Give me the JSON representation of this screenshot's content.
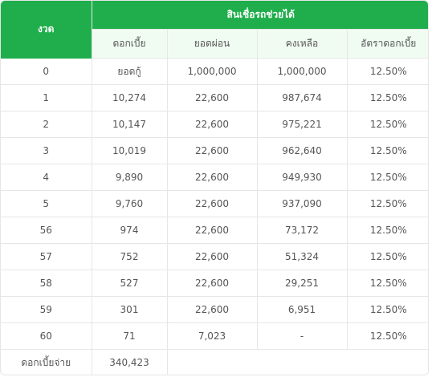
{
  "header": {
    "period_label": "งวด",
    "group_label": "สินเชื่อรถช่วยได้",
    "columns": [
      "ดอกเบี้ย",
      "ยอดผ่อน",
      "คงเหลือ",
      "อัตราดอกเบี้ย"
    ]
  },
  "rows": [
    {
      "period": "0",
      "interest": "ยอดกู้",
      "payment": "1,000,000",
      "balance": "1,000,000",
      "rate": "12.50%"
    },
    {
      "period": "1",
      "interest": "10,274",
      "payment": "22,600",
      "balance": "987,674",
      "rate": "12.50%"
    },
    {
      "period": "2",
      "interest": "10,147",
      "payment": "22,600",
      "balance": "975,221",
      "rate": "12.50%"
    },
    {
      "period": "3",
      "interest": "10,019",
      "payment": "22,600",
      "balance": "962,640",
      "rate": "12.50%"
    },
    {
      "period": "4",
      "interest": "9,890",
      "payment": "22,600",
      "balance": "949,930",
      "rate": "12.50%"
    },
    {
      "period": "5",
      "interest": "9,760",
      "payment": "22,600",
      "balance": "937,090",
      "rate": "12.50%"
    },
    {
      "period": "56",
      "interest": "974",
      "payment": "22,600",
      "balance": "73,172",
      "rate": "12.50%"
    },
    {
      "period": "57",
      "interest": "752",
      "payment": "22,600",
      "balance": "51,324",
      "rate": "12.50%"
    },
    {
      "period": "58",
      "interest": "527",
      "payment": "22,600",
      "balance": "29,251",
      "rate": "12.50%"
    },
    {
      "period": "59",
      "interest": "301",
      "payment": "22,600",
      "balance": "6,951",
      "rate": "12.50%"
    },
    {
      "period": "60",
      "interest": "71",
      "payment": "7,023",
      "balance": "-",
      "rate": "12.50%"
    }
  ],
  "total": {
    "label": "ดอกเบี้ยจ่าย",
    "value": "340,423"
  },
  "colors": {
    "header_green": "#1fae4b",
    "subheader_bg": "#f0fcf2"
  }
}
